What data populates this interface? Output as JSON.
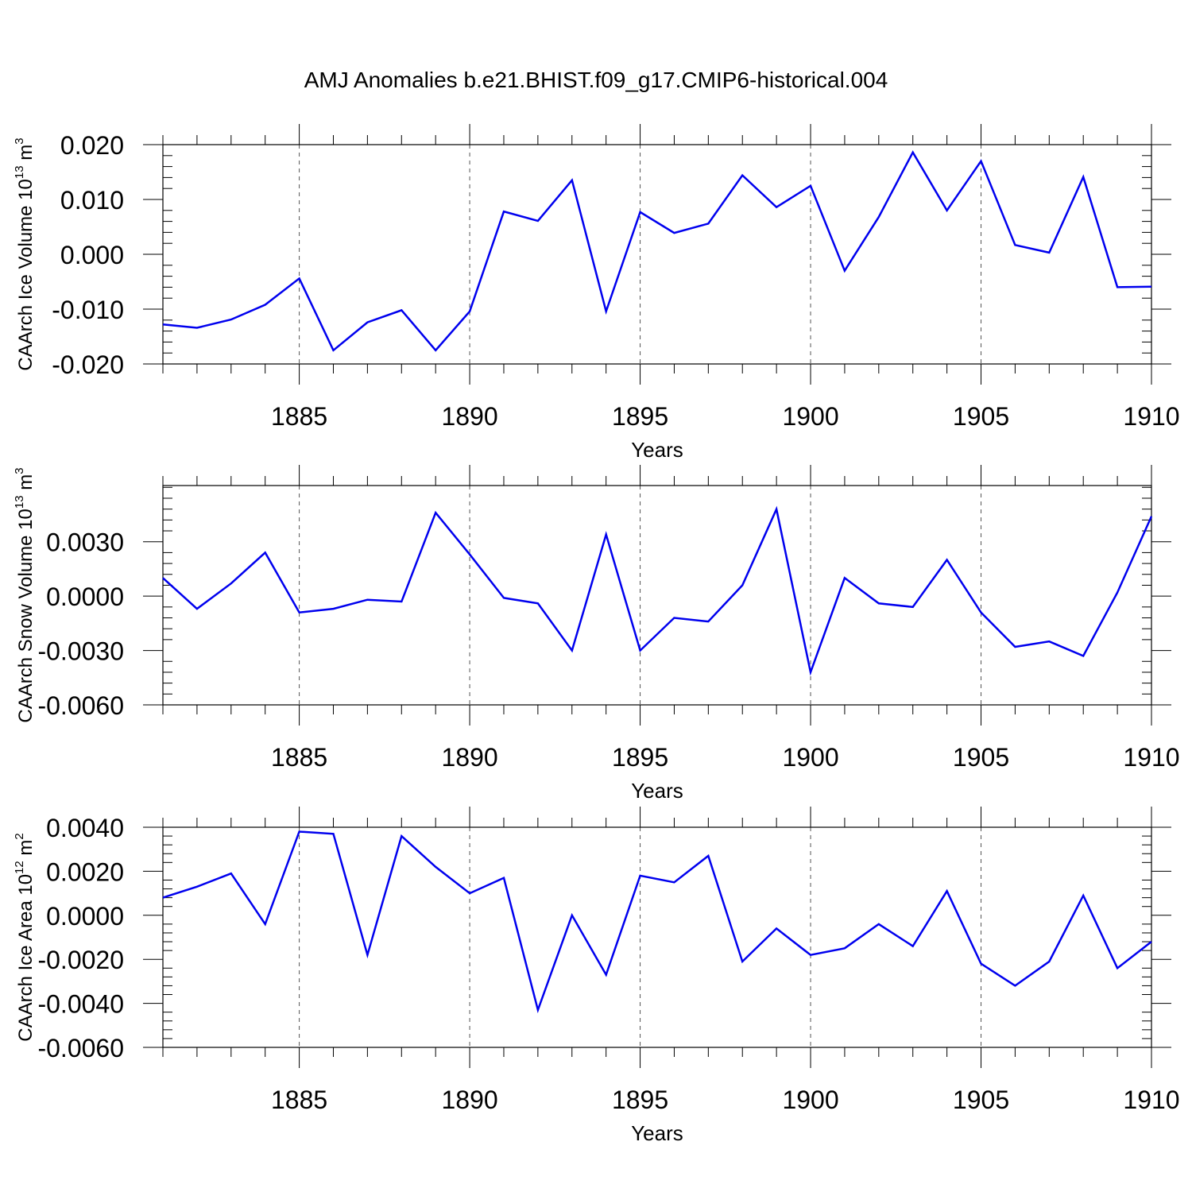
{
  "chart_data": {
    "title": "AMJ Anomalies b.e21.BHIST.f09_g17.CMIP6-historical.004",
    "panels": [
      {
        "type": "line",
        "ylabel": "CAArch Ice Volume 10",
        "ylabel_exp": "13",
        "ylabel_unit": " m",
        "ylabel_unit_exp": "3",
        "xlabel": "Years",
        "xlim": [
          1881,
          1910
        ],
        "ylim": [
          -0.02,
          0.02
        ],
        "yticks": [
          -0.02,
          -0.01,
          0.0,
          0.01,
          0.02
        ],
        "yticklabels": [
          "-0.020",
          "-0.010",
          "0.000",
          "0.010",
          "0.020"
        ],
        "xticks": [
          1885,
          1890,
          1895,
          1900,
          1905,
          1910
        ],
        "xticklabels": [
          "1885",
          "1890",
          "1895",
          "1900",
          "1905",
          "1910"
        ],
        "series": [
          {
            "name": "CAArch Ice Volume",
            "color": "#0000ee",
            "x": [
              1881,
              1882,
              1883,
              1884,
              1885,
              1886,
              1887,
              1888,
              1889,
              1890,
              1891,
              1892,
              1893,
              1894,
              1895,
              1896,
              1897,
              1898,
              1899,
              1900,
              1901,
              1902,
              1903,
              1904,
              1905,
              1906,
              1907,
              1908,
              1909,
              1910
            ],
            "values": [
              -0.0128,
              -0.0134,
              -0.0119,
              -0.0092,
              -0.0044,
              -0.0175,
              -0.0124,
              -0.0102,
              -0.0175,
              -0.0104,
              0.0078,
              0.0061,
              0.0135,
              -0.0104,
              0.0077,
              0.0039,
              0.0056,
              0.0144,
              0.0086,
              0.0125,
              -0.003,
              0.0068,
              0.0186,
              0.008,
              0.017,
              0.0017,
              0.0003,
              0.0141,
              -0.006,
              -0.0059
            ]
          }
        ]
      },
      {
        "type": "line",
        "ylabel": "CAArch Snow Volume 10",
        "ylabel_exp": "13",
        "ylabel_unit": " m",
        "ylabel_unit_exp": "3",
        "xlabel": "Years",
        "xlim": [
          1881,
          1910
        ],
        "ylim": [
          -0.006,
          0.0061
        ],
        "yticks": [
          -0.006,
          -0.003,
          0.0,
          0.003
        ],
        "yticklabels": [
          "-0.0060",
          "-0.0030",
          "0.0000",
          "0.0030"
        ],
        "xticks": [
          1885,
          1890,
          1895,
          1900,
          1905,
          1910
        ],
        "xticklabels": [
          "1885",
          "1890",
          "1895",
          "1900",
          "1905",
          "1910"
        ],
        "series": [
          {
            "name": "CAArch Snow Volume",
            "color": "#0000ee",
            "x": [
              1881,
              1882,
              1883,
              1884,
              1885,
              1886,
              1887,
              1888,
              1889,
              1890,
              1891,
              1892,
              1893,
              1894,
              1895,
              1896,
              1897,
              1898,
              1899,
              1900,
              1901,
              1902,
              1903,
              1904,
              1905,
              1906,
              1907,
              1908,
              1909,
              1910
            ],
            "values": [
              0.001,
              -0.0007,
              0.0007,
              0.0024,
              -0.0009,
              -0.0007,
              -0.0002,
              -0.0003,
              0.0046,
              0.0023,
              -0.0001,
              -0.0004,
              -0.003,
              0.0034,
              -0.003,
              -0.0012,
              -0.0014,
              0.0006,
              0.0048,
              -0.0042,
              0.001,
              -0.0004,
              -0.0006,
              0.002,
              -0.0009,
              -0.0028,
              -0.0025,
              -0.0033,
              0.0002,
              0.0044
            ]
          }
        ]
      },
      {
        "type": "line",
        "ylabel": "CAArch Ice Area 10",
        "ylabel_exp": "12",
        "ylabel_unit": " m",
        "ylabel_unit_exp": "2",
        "xlabel": "Years",
        "xlim": [
          1881,
          1910
        ],
        "ylim": [
          -0.006,
          0.004
        ],
        "yticks": [
          -0.006,
          -0.004,
          -0.002,
          0.0,
          0.002,
          0.004
        ],
        "yticklabels": [
          "-0.0060",
          "-0.0040",
          "-0.0020",
          "0.0000",
          "0.0020",
          "0.0040"
        ],
        "xticks": [
          1885,
          1890,
          1895,
          1900,
          1905,
          1910
        ],
        "xticklabels": [
          "1885",
          "1890",
          "1895",
          "1900",
          "1905",
          "1910"
        ],
        "series": [
          {
            "name": "CAArch Ice Area",
            "color": "#0000ee",
            "x": [
              1881,
              1882,
              1883,
              1884,
              1885,
              1886,
              1887,
              1888,
              1889,
              1890,
              1891,
              1892,
              1893,
              1894,
              1895,
              1896,
              1897,
              1898,
              1899,
              1900,
              1901,
              1902,
              1903,
              1904,
              1905,
              1906,
              1907,
              1908,
              1909,
              1910
            ],
            "values": [
              0.0008,
              0.0013,
              0.0019,
              -0.0004,
              0.0038,
              0.0037,
              -0.0018,
              0.0036,
              0.0022,
              0.001,
              0.0017,
              -0.0043,
              0.0,
              -0.0027,
              0.0018,
              0.0015,
              0.0027,
              -0.0021,
              -0.0006,
              -0.0018,
              -0.0015,
              -0.0004,
              -0.0014,
              0.0011,
              -0.0022,
              -0.0032,
              -0.0021,
              0.0009,
              -0.0024,
              -0.0012
            ]
          }
        ]
      }
    ]
  }
}
